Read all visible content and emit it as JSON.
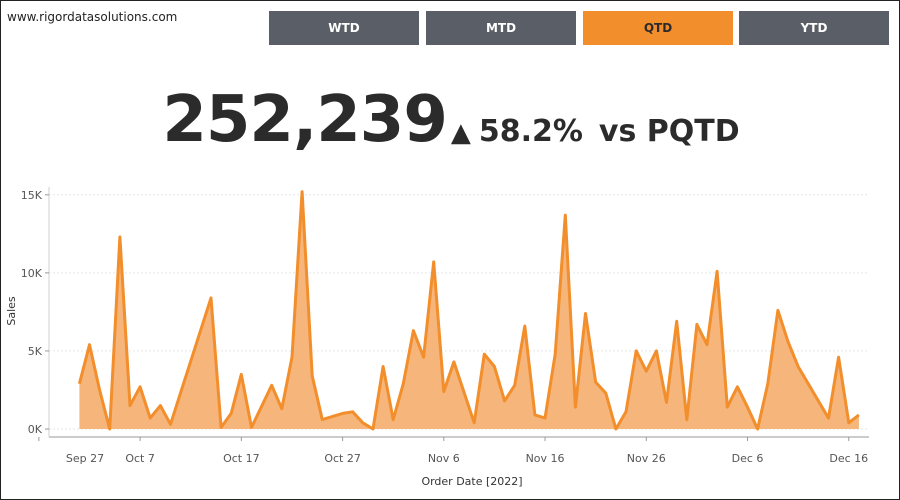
{
  "site_url": "www.rigordatasolutions.com",
  "periods": [
    {
      "label": "WTD",
      "active": false
    },
    {
      "label": "MTD",
      "active": false
    },
    {
      "label": "QTD",
      "active": true
    },
    {
      "label": "YTD",
      "active": false
    }
  ],
  "kpi": {
    "value": "252,239",
    "arrow": "▲",
    "change": "58.2%",
    "comparison": "vs PQTD"
  },
  "colors": {
    "accent": "#f28e2b",
    "area_fill": "#f6b57a",
    "button": "#5a5e66",
    "text": "#2b2b2b"
  },
  "chart_data": {
    "type": "area",
    "xlabel": "Order Date [2022]",
    "ylabel": "Sales",
    "ylim": [
      0,
      15500
    ],
    "yticks": [
      {
        "label": "0K",
        "value": 0
      },
      {
        "label": "5K",
        "value": 5000
      },
      {
        "label": "10K",
        "value": 10000
      },
      {
        "label": "15K",
        "value": 15000
      }
    ],
    "xlim": [
      -3,
      78
    ],
    "xticks": [
      {
        "label": "Sep 27",
        "value": -4
      },
      {
        "label": "Oct 7",
        "value": 6
      },
      {
        "label": "Oct 17",
        "value": 16
      },
      {
        "label": "Oct 27",
        "value": 26
      },
      {
        "label": "Nov 6",
        "value": 36
      },
      {
        "label": "Nov 16",
        "value": 46
      },
      {
        "label": "Nov 26",
        "value": 56
      },
      {
        "label": "Dec 6",
        "value": 66
      },
      {
        "label": "Dec 16",
        "value": 76
      }
    ],
    "grid": true,
    "series": [
      {
        "points": [
          [
            0,
            2900
          ],
          [
            1,
            5400
          ],
          [
            2,
            2500
          ],
          [
            3,
            0
          ],
          [
            4,
            12300
          ],
          [
            5,
            1500
          ],
          [
            6,
            2700
          ],
          [
            7,
            700
          ],
          [
            8,
            1500
          ],
          [
            9,
            300
          ],
          [
            13,
            8400
          ],
          [
            14,
            100
          ],
          [
            15,
            1000
          ],
          [
            16,
            3500
          ],
          [
            17,
            100
          ],
          [
            19,
            2800
          ],
          [
            20,
            1300
          ],
          [
            21,
            4600
          ],
          [
            22,
            15200
          ],
          [
            23,
            3400
          ],
          [
            24,
            600
          ],
          [
            26,
            1000
          ],
          [
            27,
            1100
          ],
          [
            28,
            400
          ],
          [
            29,
            0
          ],
          [
            30,
            4000
          ],
          [
            31,
            600
          ],
          [
            32,
            2900
          ],
          [
            33,
            6300
          ],
          [
            34,
            4600
          ],
          [
            35,
            10700
          ],
          [
            36,
            2400
          ],
          [
            37,
            4300
          ],
          [
            39,
            400
          ],
          [
            40,
            4800
          ],
          [
            41,
            4000
          ],
          [
            42,
            1800
          ],
          [
            43,
            2800
          ],
          [
            44,
            6600
          ],
          [
            45,
            900
          ],
          [
            46,
            700
          ],
          [
            47,
            4800
          ],
          [
            48,
            13700
          ],
          [
            49,
            1400
          ],
          [
            50,
            7400
          ],
          [
            51,
            3000
          ],
          [
            52,
            2300
          ],
          [
            53,
            0
          ],
          [
            54,
            1100
          ],
          [
            55,
            5000
          ],
          [
            56,
            3700
          ],
          [
            57,
            5000
          ],
          [
            58,
            1700
          ],
          [
            59,
            6900
          ],
          [
            60,
            600
          ],
          [
            61,
            6700
          ],
          [
            62,
            5400
          ],
          [
            63,
            10100
          ],
          [
            64,
            1400
          ],
          [
            65,
            2700
          ],
          [
            66,
            1400
          ],
          [
            67,
            0
          ],
          [
            68,
            2900
          ],
          [
            69,
            7600
          ],
          [
            70,
            5600
          ],
          [
            71,
            4000
          ],
          [
            74,
            700
          ],
          [
            75,
            4600
          ],
          [
            76,
            400
          ],
          [
            77,
            900
          ]
        ]
      }
    ]
  }
}
